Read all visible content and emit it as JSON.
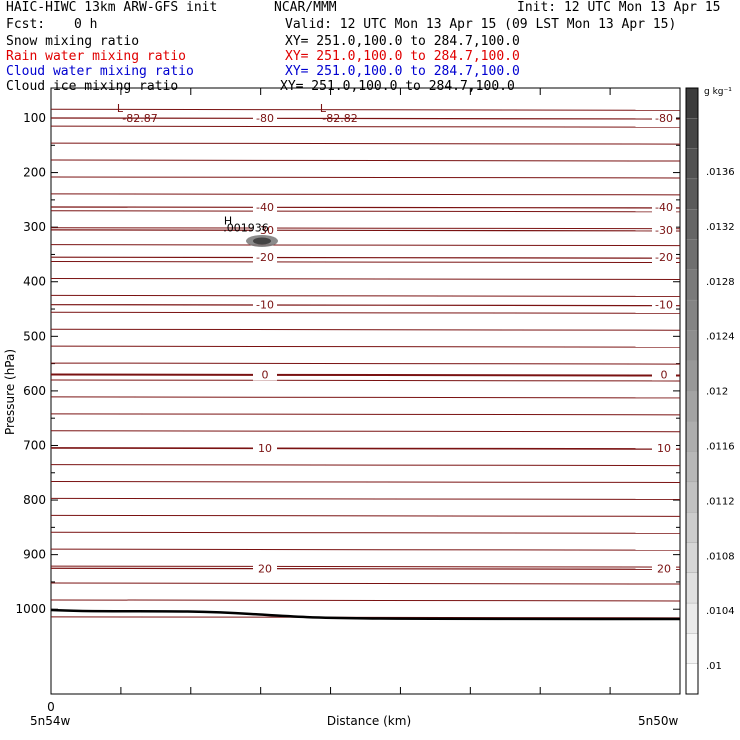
{
  "header": {
    "title": "HAIC-HIWC 13km ARW-GFS init",
    "org": "NCAR/MMM",
    "init": "Init: 12 UTC Mon 13 Apr 15",
    "fcst_label": "Fcst:",
    "fcst_value": "0 h",
    "valid": "Valid: 12 UTC Mon 13 Apr 15 (09 LST Mon 13 Apr 15)",
    "fields": [
      {
        "name": "Snow mixing ratio",
        "xy": "XY= 251.0,100.0 to 284.7,100.0",
        "color": "#000000"
      },
      {
        "name": "Rain water mixing ratio",
        "xy": "XY= 251.0,100.0 to 284.7,100.0",
        "color": "#e00000"
      },
      {
        "name": "Cloud water mixing ratio",
        "xy": "XY= 251.0,100.0 to 284.7,100.0",
        "color": "#0000d0"
      },
      {
        "name": "Cloud ice mixing ratio",
        "xy": "XY= 251.0,100.0 to 284.7,100.0",
        "color": "#000000"
      }
    ]
  },
  "chart_data": {
    "type": "contour",
    "ylabel": "Pressure (hPa)",
    "xlabel": "Distance (km)",
    "y_ticks": [
      100,
      200,
      300,
      400,
      500,
      600,
      700,
      800,
      900,
      1000
    ],
    "ylim": [
      1050,
      50
    ],
    "x_tick_labels": [
      "0",
      "5n54w",
      "5n50w"
    ],
    "colorbar": {
      "unit_label": "g kg⁻¹",
      "labels": [
        ".0136",
        ".0132",
        ".0128",
        ".0124",
        ".012",
        ".0116",
        ".0112",
        ".0108",
        ".0104",
        ".01"
      ]
    },
    "temperature_contours": [
      {
        "label": "-80",
        "pressure": 100
      },
      {
        "label": "-40",
        "pressure": 263
      },
      {
        "label": "-30",
        "pressure": 305
      },
      {
        "label": "-20",
        "pressure": 355
      },
      {
        "label": "-10",
        "pressure": 442
      },
      {
        "label": "0",
        "pressure": 570
      },
      {
        "label": "10",
        "pressure": 705
      },
      {
        "label": "20",
        "pressure": 925
      }
    ],
    "annotations": [
      {
        "text": "L",
        "pressure": 82
      },
      {
        "text": "-82.87",
        "pressure": 100
      },
      {
        "text": "L",
        "pressure": 82
      },
      {
        "text": "-82.82",
        "pressure": 100
      },
      {
        "text": "H",
        "pressure": 288
      },
      {
        "text": ".001936",
        "pressure": 301
      }
    ],
    "colors": {
      "contour": "#7a1212",
      "terrain": "#000000"
    }
  }
}
